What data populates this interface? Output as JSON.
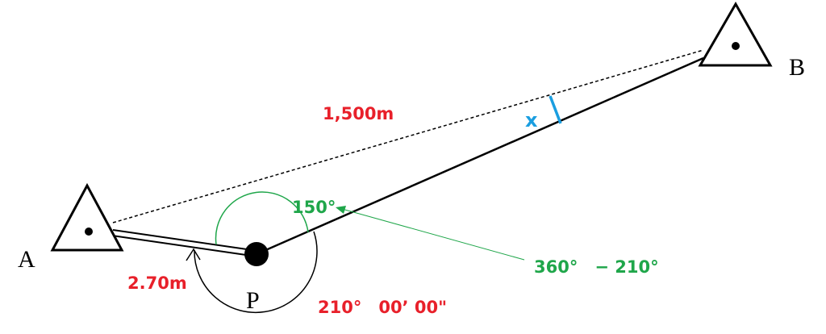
{
  "points": {
    "a": "A",
    "b": "B",
    "p": "P"
  },
  "labels": {
    "distance_ab": "1,500m",
    "unknown": "x",
    "angle_inner": "150°",
    "angle_formula": "360°　− 210°",
    "distance_ap": "2.70m",
    "angle_measured": "210°　00’ 00\""
  }
}
